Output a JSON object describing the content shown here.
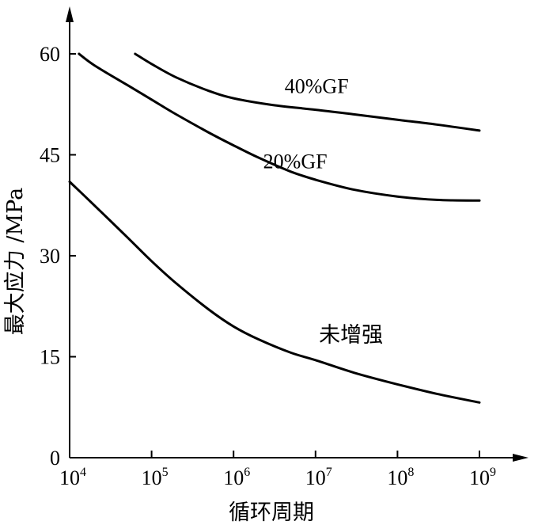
{
  "chart_data": {
    "type": "line",
    "xlabel": "循环周期",
    "ylabel": "最大应力 /MPa",
    "x_scale": "log10",
    "x_tick_labels": [
      {
        "base": "10",
        "exp": "4",
        "value": 10000
      },
      {
        "base": "10",
        "exp": "5",
        "value": 100000
      },
      {
        "base": "10",
        "exp": "6",
        "value": 1000000
      },
      {
        "base": "10",
        "exp": "7",
        "value": 10000000
      },
      {
        "base": "10",
        "exp": "8",
        "value": 100000000
      },
      {
        "base": "10",
        "exp": "9",
        "value": 1000000000
      }
    ],
    "y_ticks": [
      "0",
      "15",
      "30",
      "45",
      "60"
    ],
    "y_tick_values": [
      0,
      15,
      30,
      45,
      60
    ],
    "xlim": [
      10000,
      1000000000
    ],
    "ylim": [
      0,
      60
    ],
    "grid": false,
    "series": [
      {
        "name": "40%GF",
        "points": [
          [
            63000,
            60.0
          ],
          [
            100000,
            58.5
          ],
          [
            200000,
            56.5
          ],
          [
            500000,
            54.5
          ],
          [
            1000000,
            53.4
          ],
          [
            3000000,
            52.4
          ],
          [
            10000000,
            51.7
          ],
          [
            30000000,
            51.0
          ],
          [
            100000000,
            50.2
          ],
          [
            300000000,
            49.5
          ],
          [
            1000000000,
            48.6
          ]
        ]
      },
      {
        "name": "20%GF",
        "points": [
          [
            13000,
            60.0
          ],
          [
            20000,
            58.3
          ],
          [
            50000,
            55.4
          ],
          [
            100000,
            53.2
          ],
          [
            200000,
            51.0
          ],
          [
            500000,
            48.3
          ],
          [
            1000000,
            46.4
          ],
          [
            2000000,
            44.6
          ],
          [
            5000000,
            42.5
          ],
          [
            10000000,
            41.3
          ],
          [
            30000000,
            39.8
          ],
          [
            100000000,
            38.8
          ],
          [
            300000000,
            38.3
          ],
          [
            1000000000,
            38.2
          ]
        ]
      },
      {
        "name": "未增强",
        "points": [
          [
            10000,
            41.0
          ],
          [
            20000,
            37.5
          ],
          [
            50000,
            32.8
          ],
          [
            100000,
            29.2
          ],
          [
            200000,
            25.9
          ],
          [
            500000,
            22.0
          ],
          [
            1000000,
            19.5
          ],
          [
            2000000,
            17.6
          ],
          [
            5000000,
            15.6
          ],
          [
            10000000,
            14.5
          ],
          [
            30000000,
            12.6
          ],
          [
            100000000,
            10.9
          ],
          [
            300000000,
            9.5
          ],
          [
            1000000000,
            8.2
          ]
        ]
      }
    ],
    "annotations": [
      {
        "text": "40%GF",
        "series": "40%GF"
      },
      {
        "text": "20%GF",
        "series": "20%GF"
      },
      {
        "text": "未增强",
        "series": "未增强"
      }
    ]
  }
}
